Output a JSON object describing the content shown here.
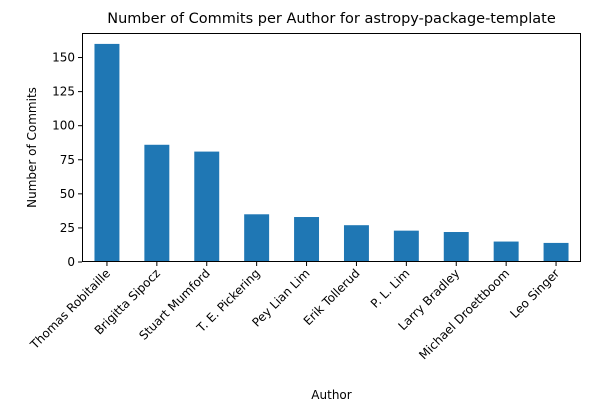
{
  "chart_data": {
    "type": "bar",
    "title": "Number of Commits per Author for astropy-package-template",
    "xlabel": "Author",
    "ylabel": "Number of Commits",
    "categories": [
      "Thomas Robitaille",
      "Brigitta Sipocz",
      "Stuart Mumford",
      "T. E. Pickering",
      "Pey Lian Lim",
      "Erik Tollerud",
      "P. L. Lim",
      "Larry Bradley",
      "Michael Droettboom",
      "Leo Singer"
    ],
    "values": [
      160,
      86,
      81,
      35,
      33,
      27,
      23,
      22,
      15,
      14
    ],
    "ylim": [
      0,
      168
    ],
    "yticks": [
      0,
      25,
      50,
      75,
      100,
      125,
      150
    ],
    "grid": false,
    "legend": "none",
    "bar_color": "#1f77b4"
  }
}
